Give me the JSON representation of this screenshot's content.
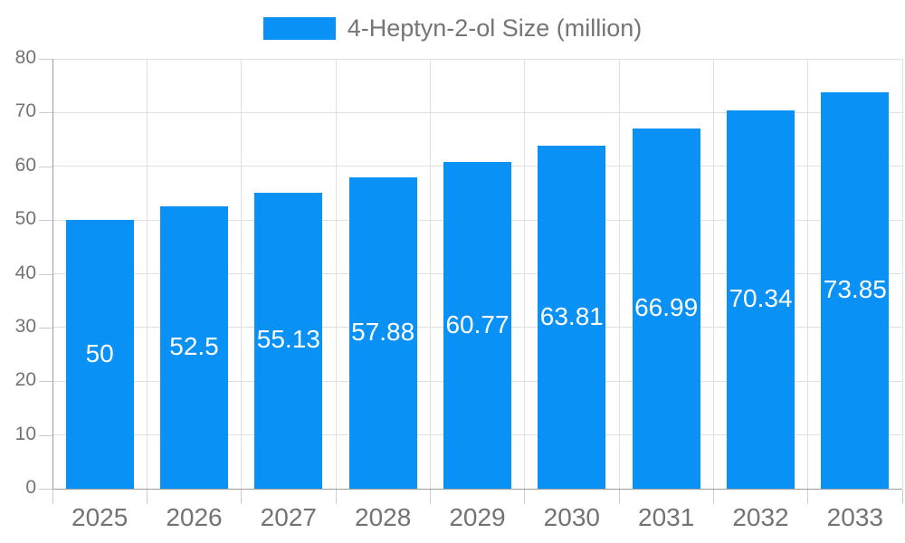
{
  "chart_data": {
    "type": "bar",
    "title": "4-Heptyn-2-ol Size (million)",
    "legend_position": "top",
    "categories": [
      "2025",
      "2026",
      "2027",
      "2028",
      "2029",
      "2030",
      "2031",
      "2032",
      "2033"
    ],
    "series": [
      {
        "name": "4-Heptyn-2-ol Size (million)",
        "values": [
          50,
          52.5,
          55.13,
          57.88,
          60.77,
          63.81,
          66.99,
          70.34,
          73.85
        ]
      }
    ],
    "bar_value_labels": [
      "50",
      "52.5",
      "55.13",
      "57.88",
      "60.77",
      "63.81",
      "66.99",
      "70.34",
      "73.85"
    ],
    "xlabel": "",
    "ylabel": "",
    "ylim": [
      0,
      80
    ],
    "yticks": [
      0,
      10,
      20,
      30,
      40,
      50,
      60,
      70,
      80
    ],
    "grid": true,
    "colors": {
      "bar": "#0991f5",
      "bar_label_text": "#ffffff",
      "axis_text": "#737373",
      "legend_text": "#757575",
      "grid_line": "#e0e0e0",
      "axis_line": "#9e9e9e",
      "tick_mark": "#cccccc",
      "background": "#ffffff"
    }
  }
}
